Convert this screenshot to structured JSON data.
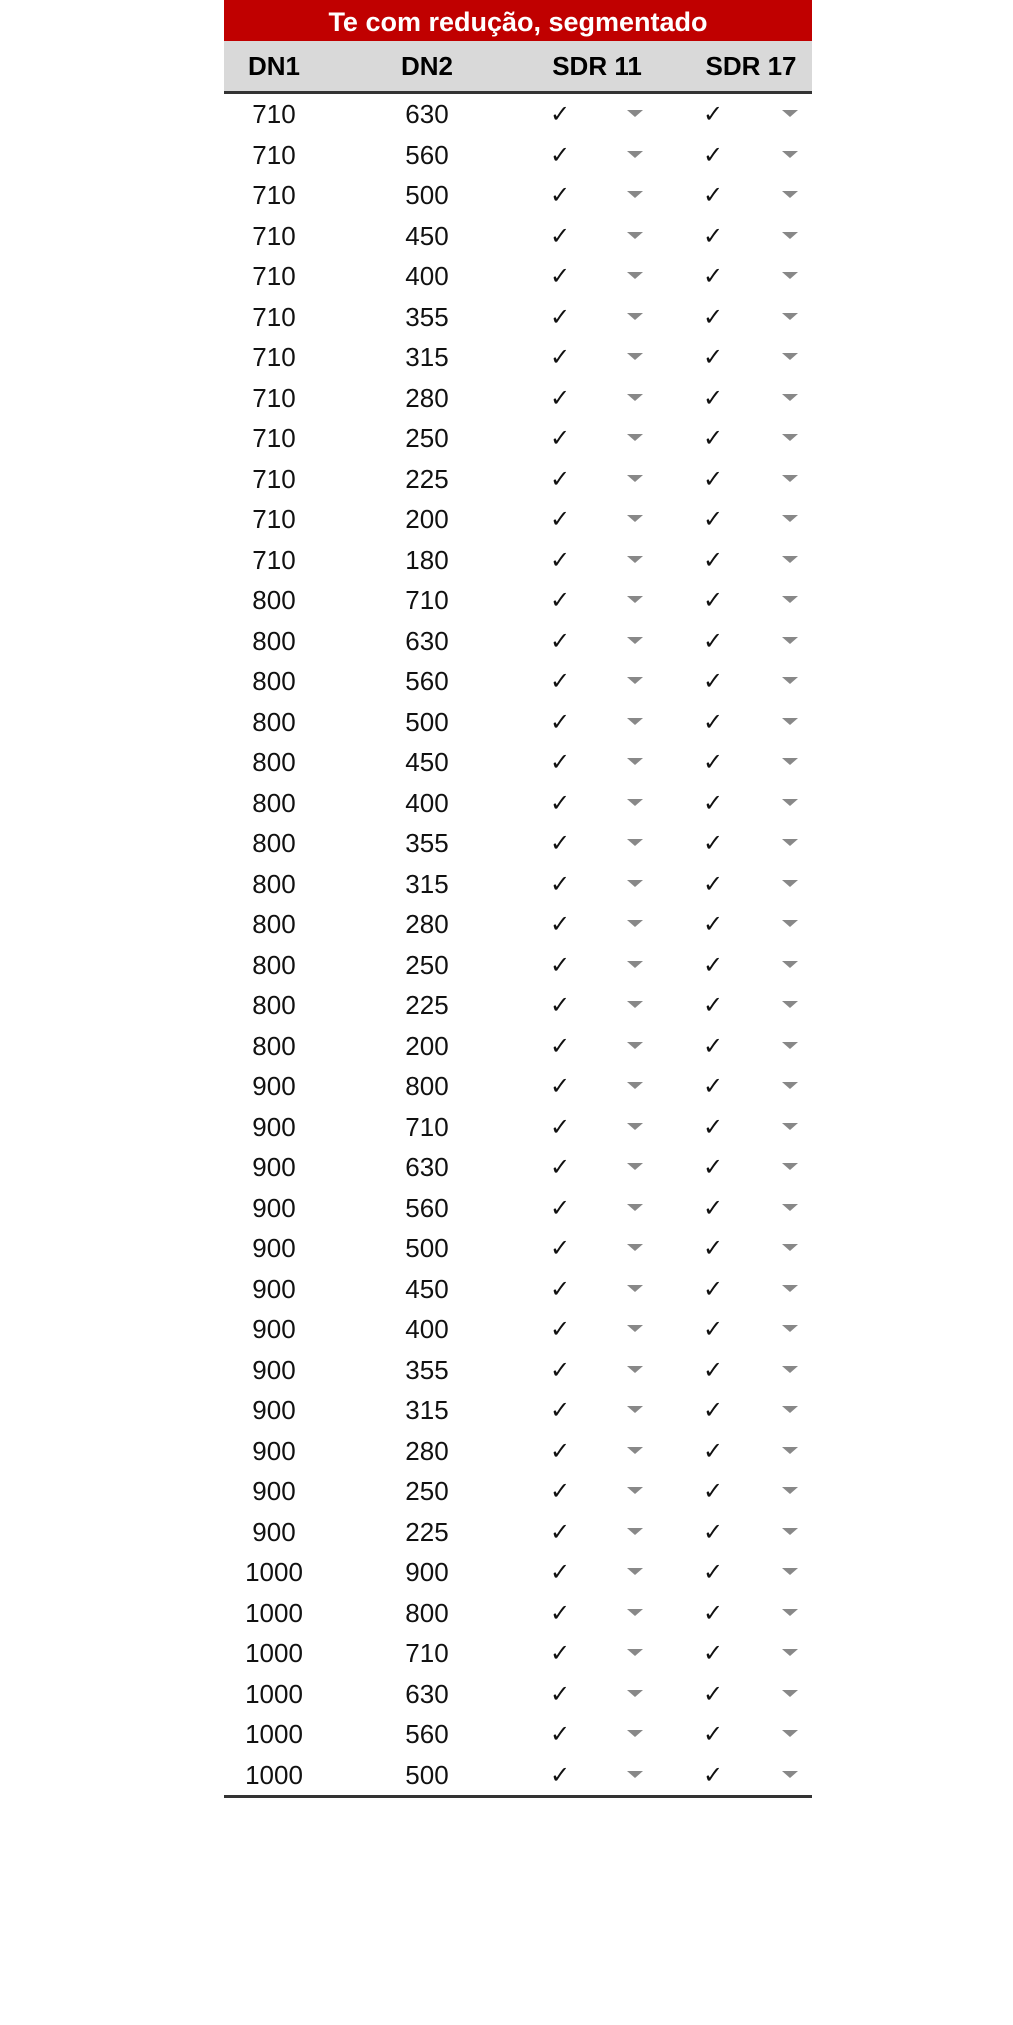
{
  "title": "Te com redução, segmentado",
  "headers": [
    "DN1",
    "DN2",
    "SDR 11",
    "SDR 17"
  ],
  "check_symbol": "✓",
  "dropdown_color": "#888888",
  "title_bg": "#c00000",
  "rows": [
    [
      "710",
      "630"
    ],
    [
      "710",
      "560"
    ],
    [
      "710",
      "500"
    ],
    [
      "710",
      "450"
    ],
    [
      "710",
      "400"
    ],
    [
      "710",
      "355"
    ],
    [
      "710",
      "315"
    ],
    [
      "710",
      "280"
    ],
    [
      "710",
      "250"
    ],
    [
      "710",
      "225"
    ],
    [
      "710",
      "200"
    ],
    [
      "710",
      "180"
    ],
    [
      "800",
      "710"
    ],
    [
      "800",
      "630"
    ],
    [
      "800",
      "560"
    ],
    [
      "800",
      "500"
    ],
    [
      "800",
      "450"
    ],
    [
      "800",
      "400"
    ],
    [
      "800",
      "355"
    ],
    [
      "800",
      "315"
    ],
    [
      "800",
      "280"
    ],
    [
      "800",
      "250"
    ],
    [
      "800",
      "225"
    ],
    [
      "800",
      "200"
    ],
    [
      "900",
      "800"
    ],
    [
      "900",
      "710"
    ],
    [
      "900",
      "630"
    ],
    [
      "900",
      "560"
    ],
    [
      "900",
      "500"
    ],
    [
      "900",
      "450"
    ],
    [
      "900",
      "400"
    ],
    [
      "900",
      "355"
    ],
    [
      "900",
      "315"
    ],
    [
      "900",
      "280"
    ],
    [
      "900",
      "250"
    ],
    [
      "900",
      "225"
    ],
    [
      "1000",
      "900"
    ],
    [
      "1000",
      "800"
    ],
    [
      "1000",
      "710"
    ],
    [
      "1000",
      "630"
    ],
    [
      "1000",
      "560"
    ],
    [
      "1000",
      "500"
    ]
  ]
}
